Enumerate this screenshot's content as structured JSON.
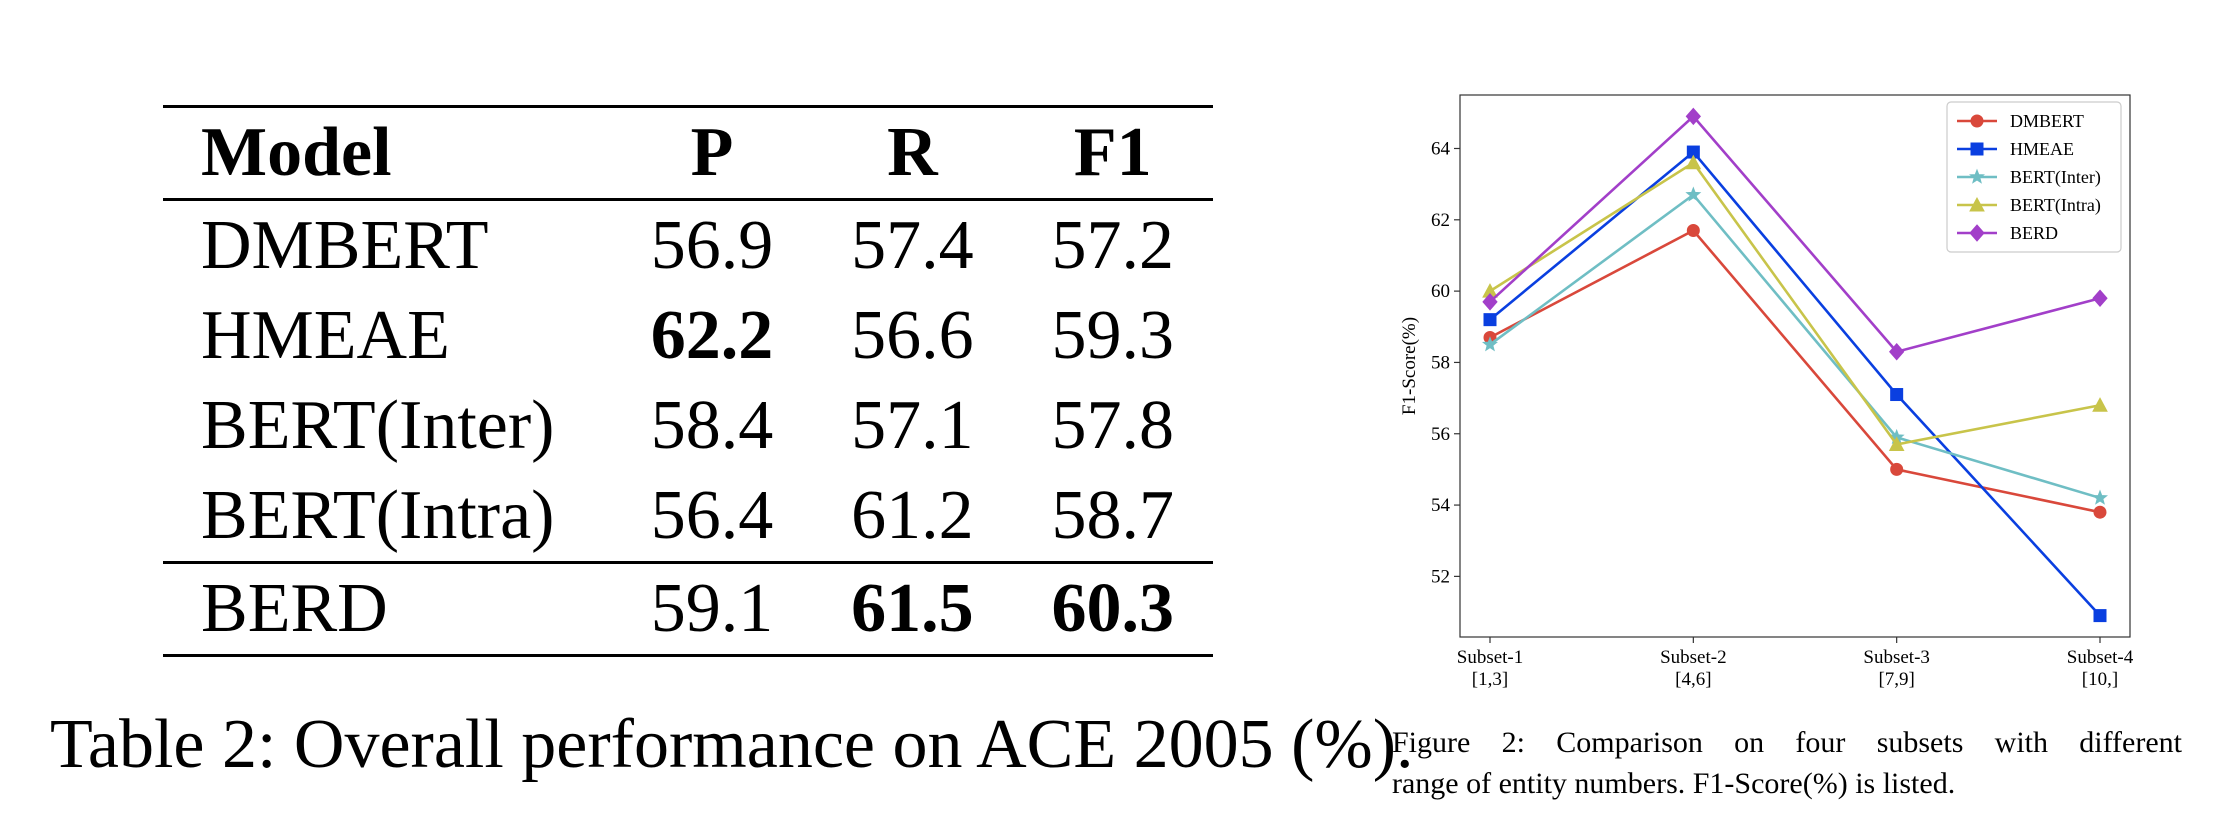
{
  "table": {
    "columns": [
      "Model",
      "P",
      "R",
      "F1"
    ],
    "rows": [
      {
        "model": "DMBERT",
        "p": "56.9",
        "r": "57.4",
        "f1": "57.2"
      },
      {
        "model": "HMEAE",
        "p": "62.2",
        "r": "56.6",
        "f1": "59.3"
      },
      {
        "model": "BERT(Inter)",
        "p": "58.4",
        "r": "57.1",
        "f1": "57.8"
      },
      {
        "model": "BERT(Intra)",
        "p": "56.4",
        "r": "61.2",
        "f1": "58.7"
      },
      {
        "model": "BERD",
        "p": "59.1",
        "r": "61.5",
        "f1": "60.3"
      }
    ],
    "caption": "Table 2: Overall performance on ACE 2005 (%)."
  },
  "chart_data": {
    "type": "line",
    "categories": [
      "Subset-1",
      "Subset-2",
      "Subset-3",
      "Subset-4"
    ],
    "category_ranges": [
      "[1,3]",
      "[4,6]",
      "[7,9]",
      "[10,]"
    ],
    "ylabel": "F1-Score(%)",
    "xlabel": "",
    "ylim": [
      50.3,
      65.5
    ],
    "yticks": [
      52,
      54,
      56,
      58,
      60,
      62,
      64
    ],
    "legend_position": "top-right",
    "series": [
      {
        "name": "DMBERT",
        "color": "#d9483b",
        "marker": "circle",
        "values": [
          58.7,
          61.7,
          55.0,
          53.8
        ]
      },
      {
        "name": "HMEAE",
        "color": "#0a3fe0",
        "marker": "square",
        "values": [
          59.2,
          63.9,
          57.1,
          50.9
        ]
      },
      {
        "name": "BERT(Inter)",
        "color": "#6fbec4",
        "marker": "star",
        "values": [
          58.5,
          62.7,
          55.9,
          54.2
        ]
      },
      {
        "name": "BERT(Intra)",
        "color": "#c8c44a",
        "marker": "triangle",
        "values": [
          60.0,
          63.6,
          55.7,
          56.8
        ]
      },
      {
        "name": "BERD",
        "color": "#a23fc9",
        "marker": "diamond",
        "values": [
          59.7,
          64.9,
          58.3,
          59.8
        ]
      }
    ]
  },
  "figure_caption": {
    "line1": "Figure 2: Comparison on four subsets with different",
    "line2": "range of entity numbers. F1-Score(%) is listed."
  }
}
